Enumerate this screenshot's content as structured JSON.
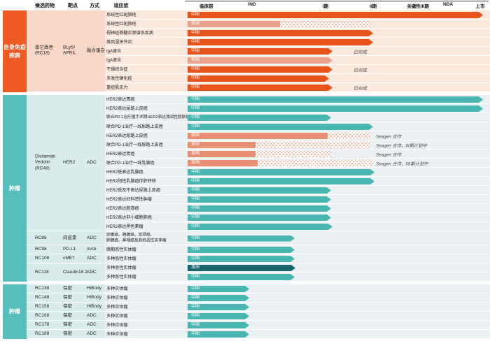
{
  "palette": {
    "orange": {
      "cat": "#EE5A24",
      "row": "#FBE9DD",
      "grp": "#F7D8C6",
      "cn": "#E8521B",
      "us": "#EBA28D",
      "dot": "#EDA893"
    },
    "teal": {
      "cat": "#57BEBB",
      "row": "#EBF1F3",
      "grp": "#D9ECEC",
      "cn": "#49B6B1",
      "us": "#E78E73",
      "dot": "#EFAB94",
      "au": "#19646A"
    },
    "note_text": "#444444",
    "header_text": "#111111"
  },
  "chart_data": {
    "type": "gantt",
    "columns": {
      "candidates": "候选药物",
      "target": "靶点",
      "modality": "方式",
      "indication": "适应症"
    },
    "phases": [
      "临床前",
      "IND",
      "I期",
      "II期",
      "关键性III期",
      "NDA",
      "上市"
    ],
    "regions": [
      "中国",
      "美国",
      "澳洲"
    ],
    "sections": [
      {
        "category": "自身免疫\n疾病",
        "theme": "orange",
        "groups": [
          {
            "drug": "泰它西普\n(RC18)",
            "target": "BLyS/\nAPRIL",
            "modality": "融合蛋白",
            "rows": [
              {
                "ind": "系统性红斑狼疮",
                "region": "中国",
                "end": 690,
                "kind": "cn"
              },
              {
                "ind": "系统性红斑狼疮",
                "region": "美国",
                "end": 400,
                "hatch": 530,
                "kind": "us"
              },
              {
                "ind": "视神经脊髓炎频谱系疾病",
                "region": "中国",
                "end": 533,
                "kind": "cn"
              },
              {
                "ind": "类风湿关节炎",
                "region": "中国",
                "end": 533,
                "kind": "cn"
              },
              {
                "ind": "IgA肾炎",
                "region": "中国",
                "end": 475,
                "kind": "cn",
                "note": "已完成"
              },
              {
                "ind": "IgA肾炎",
                "region": "美国",
                "end": 475,
                "kind": "usa"
              },
              {
                "ind": "干燥综合征",
                "region": "中国",
                "end": 475,
                "kind": "cn",
                "note": "已完成"
              },
              {
                "ind": "多发性硬化症",
                "region": "中国",
                "end": 470,
                "kind": "cn"
              },
              {
                "ind": "重症肌无力",
                "region": "中国",
                "end": 475,
                "kind": "cn",
                "note": "已完成"
              }
            ]
          }
        ]
      },
      {
        "category": "肿瘤",
        "theme": "teal",
        "groups": [
          {
            "drug": "Disitamab\nVedotin\n(RC48)",
            "target": "HER2",
            "modality": "ADC",
            "rows": [
              {
                "ind": "HER2表达胃癌",
                "region": "中国",
                "end": 690,
                "kind": "cn"
              },
              {
                "ind": "HER2表达尿路上皮癌",
                "region": "中国",
                "end": 690,
                "kind": "cn"
              },
              {
                "ind": "联合PD-1治疗围手术期HER2表达浸润性膀胱癌",
                "region": "中国",
                "end": 473,
                "kind": "cn"
              },
              {
                "ind": "联合PD-1治疗一线尿路上皮癌",
                "region": "中国",
                "end": 533,
                "kind": "cn"
              },
              {
                "ind": "HER2表达尿路上皮癌",
                "region": "美国",
                "end": 468,
                "hatch": 530,
                "kind": "us",
                "note": "Seagen 合作"
              },
              {
                "ind": "联合PD-1治疗一线尿路上皮癌",
                "region": "美国",
                "end": 365,
                "hatch": 530,
                "kind": "us",
                "note": "Seagen 合作，III期计划中"
              },
              {
                "ind": "HER2表达胃癌",
                "region": "美国",
                "end": 365,
                "hatch": 473,
                "kind": "us",
                "note": "Seagen 合作"
              },
              {
                "ind": "联合PD-1治疗一线乳腺癌",
                "region": "美国",
                "end": 368,
                "hatch": 533,
                "kind": "us",
                "note": "Seagen 合作，I/II期计划中"
              },
              {
                "ind": "HER2低表达乳腺癌",
                "region": "中国",
                "end": 535,
                "kind": "cn"
              },
              {
                "ind": "HER2阳性乳腺癌伴肝转移",
                "region": "中国",
                "end": 535,
                "kind": "cn"
              },
              {
                "ind": "HER2低及不表达尿路上皮癌",
                "region": "中国",
                "end": 473,
                "kind": "cn"
              },
              {
                "ind": "HER2表达妇科恶性肿瘤",
                "region": "中国",
                "end": 473,
                "kind": "cn"
              },
              {
                "ind": "HER2表达胆道癌",
                "region": "中国",
                "end": 473,
                "kind": "cn"
              },
              {
                "ind": "HER2表达非小细胞肺癌",
                "region": "中国",
                "end": 473,
                "kind": "cn"
              },
              {
                "ind": "HER2表达黑色素瘤",
                "region": "中国",
                "end": 475,
                "kind": "cn"
              }
            ]
          },
          {
            "drug": "RC88",
            "target": "间皮素",
            "modality": "ADC",
            "rows": [
              {
                "ind": "卵巢癌、胰腺癌、宫颈癌、\n肺腺癌、鼻咽癌及其他恶性实体瘤",
                "region": "中国",
                "end": 421,
                "kind": "cn",
                "h": 20
              }
            ]
          },
          {
            "drug": "RC98",
            "target": "PD-L1",
            "modality": "mAb",
            "rows": [
              {
                "ind": "晚期恶性实体瘤",
                "region": "中国",
                "end": 421,
                "kind": "cn"
              }
            ]
          },
          {
            "drug": "RC108",
            "target": "cMET",
            "modality": "ADC",
            "rows": [
              {
                "ind": "多种恶性实体瘤",
                "region": "中国",
                "end": 421,
                "kind": "cn"
              }
            ]
          },
          {
            "drug": "RC118",
            "target": "Claudin18.2",
            "modality": "ADC",
            "rows": [
              {
                "ind": "多种恶性实体瘤",
                "region": "澳洲",
                "end": 422,
                "kind": "au"
              },
              {
                "ind": "多种恶性实体瘤",
                "region": "中国",
                "end": 421,
                "kind": "cn"
              }
            ]
          }
        ]
      },
      {
        "category": "肿瘤",
        "theme": "teal",
        "groups": [
          {
            "drug": "RC138",
            "target": "保密",
            "modality": "HiBody",
            "rows": [
              {
                "ind": "多种实体瘤",
                "region": "中国",
                "end": 356,
                "kind": "cn"
              }
            ]
          },
          {
            "drug": "RC148",
            "target": "保密",
            "modality": "HiBody",
            "rows": [
              {
                "ind": "多种实体瘤",
                "region": "中国",
                "end": 356,
                "kind": "cn"
              }
            ]
          },
          {
            "drug": "RC158",
            "target": "保密",
            "modality": "HiBody",
            "rows": [
              {
                "ind": "多种实体瘤",
                "region": "中国",
                "end": 356,
                "kind": "cn"
              }
            ]
          },
          {
            "drug": "RC168",
            "target": "保密",
            "modality": "ADC",
            "rows": [
              {
                "ind": "多种实体瘤",
                "region": "中国",
                "end": 356,
                "kind": "cn"
              }
            ]
          },
          {
            "drug": "RC178",
            "target": "保密",
            "modality": "ADC",
            "rows": [
              {
                "ind": "多种实体瘤",
                "region": "中国",
                "end": 356,
                "kind": "cn"
              }
            ]
          },
          {
            "drug": "RC188",
            "target": "保密",
            "modality": "ADC",
            "rows": [
              {
                "ind": "多种实体瘤",
                "region": "中国",
                "end": 356,
                "kind": "cn"
              }
            ]
          }
        ]
      }
    ]
  }
}
